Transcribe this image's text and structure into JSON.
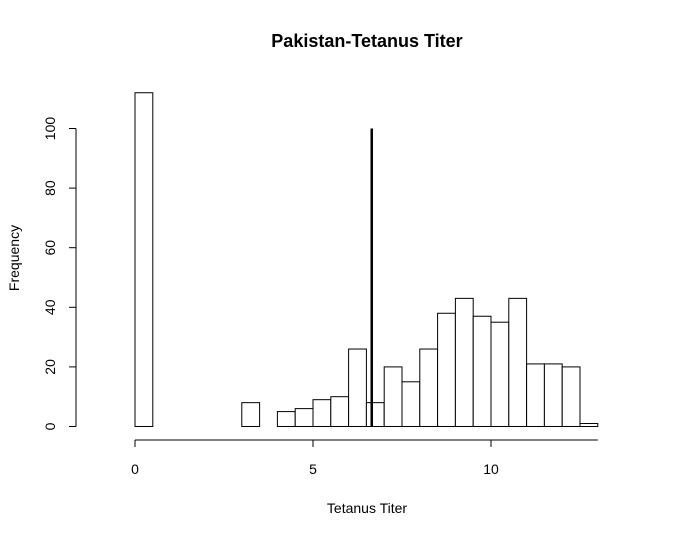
{
  "chart_data": {
    "type": "bar",
    "title": "Pakistan-Tetanus Titer",
    "xlabel": "Tetanus Titer",
    "ylabel": "Frequency",
    "bin_width": 0.5,
    "bin_starts": [
      0,
      0.5,
      1,
      1.5,
      2,
      2.5,
      3,
      3.5,
      4,
      4.5,
      5,
      5.5,
      6,
      6.5,
      7,
      7.5,
      8,
      8.5,
      9,
      9.5,
      10,
      10.5,
      11,
      11.5,
      12,
      12.5
    ],
    "values": [
      112,
      0,
      0,
      0,
      0,
      0,
      8,
      0,
      5,
      6,
      9,
      10,
      26,
      8,
      20,
      15,
      26,
      38,
      43,
      37,
      35,
      43,
      21,
      21,
      20,
      1
    ],
    "reference_line": {
      "x": 6.65,
      "y_from": 0,
      "y_to": 100
    },
    "xlim": [
      0,
      13
    ],
    "ylim": [
      0,
      112
    ],
    "xticks": [
      0,
      5,
      10
    ],
    "yticks": [
      0,
      20,
      40,
      60,
      80,
      100
    ],
    "grid": false,
    "legend": "none"
  }
}
